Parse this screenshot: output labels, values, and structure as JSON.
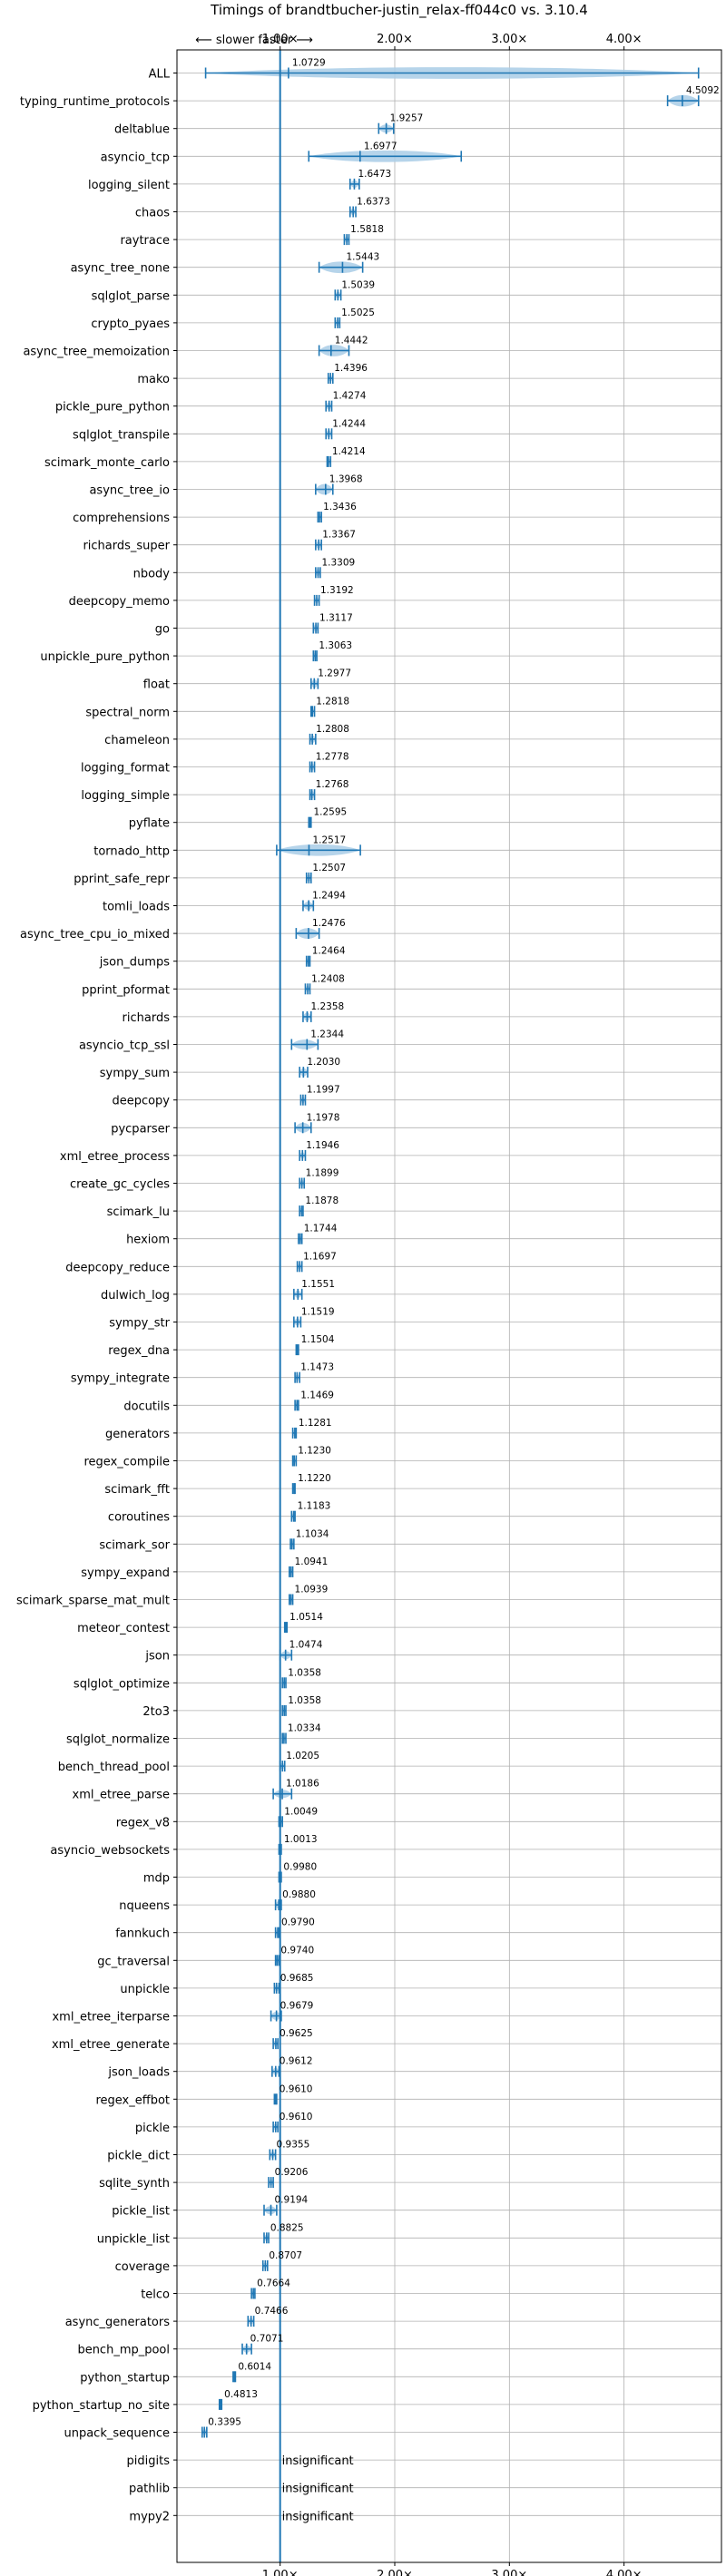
{
  "chart_data": {
    "type": "violin",
    "title": "Timings of brandtbucher-justin_relax-ff044c0 vs. 3.10.4",
    "direction_label": "⟵ slower   faster ⟶",
    "x_ticks": [
      {
        "value": 1,
        "label": "1.00×"
      },
      {
        "value": 2,
        "label": "2.00×"
      },
      {
        "value": 3,
        "label": "3.00×"
      },
      {
        "value": 4,
        "label": "4.00×"
      }
    ],
    "xlim": [
      0.1,
      4.85
    ],
    "reference_line": 1.0,
    "grid": true,
    "insignificant_label": "insignificant",
    "colors": {
      "accent": "#1f77b4",
      "violin": "#a9cce6",
      "grid": "#b0b0b0",
      "median": "#d62728"
    },
    "benchmarks": [
      {
        "name": "ALL",
        "value": 1.0729,
        "label": "1.0729",
        "lo": 0.35,
        "hi": 4.65,
        "spread": 0.15
      },
      {
        "name": "typing_runtime_protocols",
        "value": 4.5092,
        "label": "4.5092",
        "lo": 4.38,
        "hi": 4.65,
        "spread": 0.11
      },
      {
        "name": "deltablue",
        "value": 1.9257,
        "label": "1.9257",
        "lo": 1.86,
        "hi": 1.99,
        "spread": 0.05
      },
      {
        "name": "asyncio_tcp",
        "value": 1.6977,
        "label": "1.6977",
        "lo": 1.25,
        "hi": 2.58,
        "spread": 0.22
      },
      {
        "name": "logging_silent",
        "value": 1.6473,
        "label": "1.6473",
        "lo": 1.61,
        "hi": 1.69,
        "spread": 0.04
      },
      {
        "name": "chaos",
        "value": 1.6373,
        "label": "1.6373",
        "lo": 1.61,
        "hi": 1.66,
        "spread": 0.03
      },
      {
        "name": "raytrace",
        "value": 1.5818,
        "label": "1.5818",
        "lo": 1.56,
        "hi": 1.6,
        "spread": 0.03
      },
      {
        "name": "async_tree_none",
        "value": 1.5443,
        "label": "1.5443",
        "lo": 1.34,
        "hi": 1.72,
        "spread": 0.12
      },
      {
        "name": "sqlglot_parse",
        "value": 1.5039,
        "label": "1.5039",
        "lo": 1.48,
        "hi": 1.53,
        "spread": 0.03
      },
      {
        "name": "crypto_pyaes",
        "value": 1.5025,
        "label": "1.5025",
        "lo": 1.48,
        "hi": 1.52,
        "spread": 0.03
      },
      {
        "name": "async_tree_memoization",
        "value": 1.4442,
        "label": "1.4442",
        "lo": 1.34,
        "hi": 1.6,
        "spread": 0.12
      },
      {
        "name": "mako",
        "value": 1.4396,
        "label": "1.4396",
        "lo": 1.42,
        "hi": 1.46,
        "spread": 0.03
      },
      {
        "name": "pickle_pure_python",
        "value": 1.4274,
        "label": "1.4274",
        "lo": 1.4,
        "hi": 1.45,
        "spread": 0.04
      },
      {
        "name": "sqlglot_transpile",
        "value": 1.4244,
        "label": "1.4244",
        "lo": 1.4,
        "hi": 1.45,
        "spread": 0.04
      },
      {
        "name": "scimark_monte_carlo",
        "value": 1.4214,
        "label": "1.4214",
        "lo": 1.41,
        "hi": 1.44,
        "spread": 0.03
      },
      {
        "name": "async_tree_io",
        "value": 1.3968,
        "label": "1.3968",
        "lo": 1.31,
        "hi": 1.46,
        "spread": 0.08
      },
      {
        "name": "comprehensions",
        "value": 1.3436,
        "label": "1.3436",
        "lo": 1.33,
        "hi": 1.36,
        "spread": 0.03
      },
      {
        "name": "richards_super",
        "value": 1.3367,
        "label": "1.3367",
        "lo": 1.31,
        "hi": 1.36,
        "spread": 0.04
      },
      {
        "name": "nbody",
        "value": 1.3309,
        "label": "1.3309",
        "lo": 1.31,
        "hi": 1.35,
        "spread": 0.04
      },
      {
        "name": "deepcopy_memo",
        "value": 1.3192,
        "label": "1.3192",
        "lo": 1.3,
        "hi": 1.34,
        "spread": 0.03
      },
      {
        "name": "go",
        "value": 1.3117,
        "label": "1.3117",
        "lo": 1.29,
        "hi": 1.33,
        "spread": 0.04
      },
      {
        "name": "unpickle_pure_python",
        "value": 1.3063,
        "label": "1.3063",
        "lo": 1.29,
        "hi": 1.32,
        "spread": 0.03
      },
      {
        "name": "float",
        "value": 1.2977,
        "label": "1.2977",
        "lo": 1.27,
        "hi": 1.33,
        "spread": 0.05
      },
      {
        "name": "spectral_norm",
        "value": 1.2818,
        "label": "1.2818",
        "lo": 1.27,
        "hi": 1.3,
        "spread": 0.02
      },
      {
        "name": "chameleon",
        "value": 1.2808,
        "label": "1.2808",
        "lo": 1.26,
        "hi": 1.31,
        "spread": 0.04
      },
      {
        "name": "logging_format",
        "value": 1.2778,
        "label": "1.2778",
        "lo": 1.26,
        "hi": 1.3,
        "spread": 0.04
      },
      {
        "name": "logging_simple",
        "value": 1.2768,
        "label": "1.2768",
        "lo": 1.26,
        "hi": 1.3,
        "spread": 0.04
      },
      {
        "name": "pyflate",
        "value": 1.2595,
        "label": "1.2595",
        "lo": 1.25,
        "hi": 1.27,
        "spread": 0.03
      },
      {
        "name": "tornado_http",
        "value": 1.2517,
        "label": "1.2517",
        "lo": 0.97,
        "hi": 1.7,
        "spread": 0.14
      },
      {
        "name": "pprint_safe_repr",
        "value": 1.2507,
        "label": "1.2507",
        "lo": 1.23,
        "hi": 1.27,
        "spread": 0.04
      },
      {
        "name": "tomli_loads",
        "value": 1.2494,
        "label": "1.2494",
        "lo": 1.2,
        "hi": 1.29,
        "spread": 0.05
      },
      {
        "name": "async_tree_cpu_io_mixed",
        "value": 1.2476,
        "label": "1.2476",
        "lo": 1.14,
        "hi": 1.34,
        "spread": 0.08
      },
      {
        "name": "json_dumps",
        "value": 1.2464,
        "label": "1.2464",
        "lo": 1.23,
        "hi": 1.26,
        "spread": 0.03
      },
      {
        "name": "pprint_pformat",
        "value": 1.2408,
        "label": "1.2408",
        "lo": 1.22,
        "hi": 1.26,
        "spread": 0.03
      },
      {
        "name": "richards",
        "value": 1.2358,
        "label": "1.2358",
        "lo": 1.2,
        "hi": 1.27,
        "spread": 0.05
      },
      {
        "name": "asyncio_tcp_ssl",
        "value": 1.2344,
        "label": "1.2344",
        "lo": 1.1,
        "hi": 1.33,
        "spread": 0.07
      },
      {
        "name": "sympy_sum",
        "value": 1.203,
        "label": "1.2030",
        "lo": 1.17,
        "hi": 1.24,
        "spread": 0.05
      },
      {
        "name": "deepcopy",
        "value": 1.1997,
        "label": "1.1997",
        "lo": 1.18,
        "hi": 1.22,
        "spread": 0.03
      },
      {
        "name": "pycparser",
        "value": 1.1978,
        "label": "1.1978",
        "lo": 1.13,
        "hi": 1.27,
        "spread": 0.07
      },
      {
        "name": "xml_etree_process",
        "value": 1.1946,
        "label": "1.1946",
        "lo": 1.17,
        "hi": 1.22,
        "spread": 0.03
      },
      {
        "name": "create_gc_cycles",
        "value": 1.1899,
        "label": "1.1899",
        "lo": 1.17,
        "hi": 1.21,
        "spread": 0.03
      },
      {
        "name": "scimark_lu",
        "value": 1.1878,
        "label": "1.1878",
        "lo": 1.17,
        "hi": 1.2,
        "spread": 0.03
      },
      {
        "name": "hexiom",
        "value": 1.1744,
        "label": "1.1744",
        "lo": 1.16,
        "hi": 1.19,
        "spread": 0.03
      },
      {
        "name": "deepcopy_reduce",
        "value": 1.1697,
        "label": "1.1697",
        "lo": 1.15,
        "hi": 1.19,
        "spread": 0.03
      },
      {
        "name": "dulwich_log",
        "value": 1.1551,
        "label": "1.1551",
        "lo": 1.12,
        "hi": 1.19,
        "spread": 0.04
      },
      {
        "name": "sympy_str",
        "value": 1.1519,
        "label": "1.1519",
        "lo": 1.12,
        "hi": 1.18,
        "spread": 0.04
      },
      {
        "name": "regex_dna",
        "value": 1.1504,
        "label": "1.1504",
        "lo": 1.14,
        "hi": 1.16,
        "spread": 0.02
      },
      {
        "name": "sympy_integrate",
        "value": 1.1473,
        "label": "1.1473",
        "lo": 1.13,
        "hi": 1.17,
        "spread": 0.03
      },
      {
        "name": "docutils",
        "value": 1.1469,
        "label": "1.1469",
        "lo": 1.13,
        "hi": 1.16,
        "spread": 0.03
      },
      {
        "name": "generators",
        "value": 1.1281,
        "label": "1.1281",
        "lo": 1.11,
        "hi": 1.14,
        "spread": 0.03
      },
      {
        "name": "regex_compile",
        "value": 1.123,
        "label": "1.1230",
        "lo": 1.11,
        "hi": 1.14,
        "spread": 0.03
      },
      {
        "name": "scimark_fft",
        "value": 1.122,
        "label": "1.1220",
        "lo": 1.11,
        "hi": 1.13,
        "spread": 0.02
      },
      {
        "name": "coroutines",
        "value": 1.1183,
        "label": "1.1183",
        "lo": 1.1,
        "hi": 1.13,
        "spread": 0.03
      },
      {
        "name": "scimark_sor",
        "value": 1.1034,
        "label": "1.1034",
        "lo": 1.09,
        "hi": 1.12,
        "spread": 0.03
      },
      {
        "name": "sympy_expand",
        "value": 1.0941,
        "label": "1.0941",
        "lo": 1.08,
        "hi": 1.11,
        "spread": 0.03
      },
      {
        "name": "scimark_sparse_mat_mult",
        "value": 1.0939,
        "label": "1.0939",
        "lo": 1.08,
        "hi": 1.11,
        "spread": 0.03
      },
      {
        "name": "meteor_contest",
        "value": 1.0514,
        "label": "1.0514",
        "lo": 1.04,
        "hi": 1.06,
        "spread": 0.02
      },
      {
        "name": "json",
        "value": 1.0474,
        "label": "1.0474",
        "lo": 1.0,
        "hi": 1.1,
        "spread": 0.05
      },
      {
        "name": "sqlglot_optimize",
        "value": 1.0358,
        "label": "1.0358",
        "lo": 1.02,
        "hi": 1.05,
        "spread": 0.03
      },
      {
        "name": "2to3",
        "value": 1.0358,
        "label": "1.0358",
        "lo": 1.02,
        "hi": 1.05,
        "spread": 0.03
      },
      {
        "name": "sqlglot_normalize",
        "value": 1.0334,
        "label": "1.0334",
        "lo": 1.02,
        "hi": 1.05,
        "spread": 0.03
      },
      {
        "name": "bench_thread_pool",
        "value": 1.0205,
        "label": "1.0205",
        "lo": 1.0,
        "hi": 1.04,
        "spread": 0.03
      },
      {
        "name": "xml_etree_parse",
        "value": 1.0186,
        "label": "1.0186",
        "lo": 0.94,
        "hi": 1.1,
        "spread": 0.05
      },
      {
        "name": "regex_v8",
        "value": 1.0049,
        "label": "1.0049",
        "lo": 0.99,
        "hi": 1.02,
        "spread": 0.02
      },
      {
        "name": "asyncio_websockets",
        "value": 1.0013,
        "label": "1.0013",
        "lo": 0.99,
        "hi": 1.01,
        "spread": 0.02
      },
      {
        "name": "mdp",
        "value": 0.998,
        "label": "0.9980",
        "lo": 0.99,
        "hi": 1.01,
        "spread": 0.02
      },
      {
        "name": "nqueens",
        "value": 0.988,
        "label": "0.9880",
        "lo": 0.96,
        "hi": 1.01,
        "spread": 0.04
      },
      {
        "name": "fannkuch",
        "value": 0.979,
        "label": "0.9790",
        "lo": 0.96,
        "hi": 0.99,
        "spread": 0.03
      },
      {
        "name": "gc_traversal",
        "value": 0.974,
        "label": "0.9740",
        "lo": 0.96,
        "hi": 0.99,
        "spread": 0.03
      },
      {
        "name": "unpickle",
        "value": 0.9685,
        "label": "0.9685",
        "lo": 0.95,
        "hi": 0.99,
        "spread": 0.03
      },
      {
        "name": "xml_etree_iterparse",
        "value": 0.9679,
        "label": "0.9679",
        "lo": 0.92,
        "hi": 1.01,
        "spread": 0.05
      },
      {
        "name": "xml_etree_generate",
        "value": 0.9625,
        "label": "0.9625",
        "lo": 0.94,
        "hi": 0.98,
        "spread": 0.03
      },
      {
        "name": "json_loads",
        "value": 0.9612,
        "label": "0.9612",
        "lo": 0.93,
        "hi": 0.99,
        "spread": 0.04
      },
      {
        "name": "regex_effbot",
        "value": 0.961,
        "label": "0.9610",
        "lo": 0.95,
        "hi": 0.97,
        "spread": 0.02
      },
      {
        "name": "pickle",
        "value": 0.961,
        "label": "0.9610",
        "lo": 0.94,
        "hi": 0.98,
        "spread": 0.03
      },
      {
        "name": "pickle_dict",
        "value": 0.9355,
        "label": "0.9355",
        "lo": 0.91,
        "hi": 0.96,
        "spread": 0.03
      },
      {
        "name": "sqlite_synth",
        "value": 0.9206,
        "label": "0.9206",
        "lo": 0.9,
        "hi": 0.94,
        "spread": 0.03
      },
      {
        "name": "pickle_list",
        "value": 0.9194,
        "label": "0.9194",
        "lo": 0.86,
        "hi": 0.97,
        "spread": 0.05
      },
      {
        "name": "unpickle_list",
        "value": 0.8825,
        "label": "0.8825",
        "lo": 0.86,
        "hi": 0.9,
        "spread": 0.03
      },
      {
        "name": "coverage",
        "value": 0.8707,
        "label": "0.8707",
        "lo": 0.85,
        "hi": 0.89,
        "spread": 0.03
      },
      {
        "name": "telco",
        "value": 0.7664,
        "label": "0.7664",
        "lo": 0.75,
        "hi": 0.78,
        "spread": 0.02
      },
      {
        "name": "async_generators",
        "value": 0.7466,
        "label": "0.7466",
        "lo": 0.72,
        "hi": 0.77,
        "spread": 0.03
      },
      {
        "name": "bench_mp_pool",
        "value": 0.7071,
        "label": "0.7071",
        "lo": 0.67,
        "hi": 0.75,
        "spread": 0.04
      },
      {
        "name": "python_startup",
        "value": 0.6014,
        "label": "0.6014",
        "lo": 0.59,
        "hi": 0.61,
        "spread": 0.03
      },
      {
        "name": "python_startup_no_site",
        "value": 0.4813,
        "label": "0.4813",
        "lo": 0.47,
        "hi": 0.49,
        "spread": 0.03
      },
      {
        "name": "unpack_sequence",
        "value": 0.3395,
        "label": "0.3395",
        "lo": 0.32,
        "hi": 0.36,
        "spread": 0.03
      },
      {
        "name": "pidigits",
        "value": null,
        "label": ""
      },
      {
        "name": "pathlib",
        "value": null,
        "label": ""
      },
      {
        "name": "mypy2",
        "value": null,
        "label": ""
      }
    ]
  }
}
